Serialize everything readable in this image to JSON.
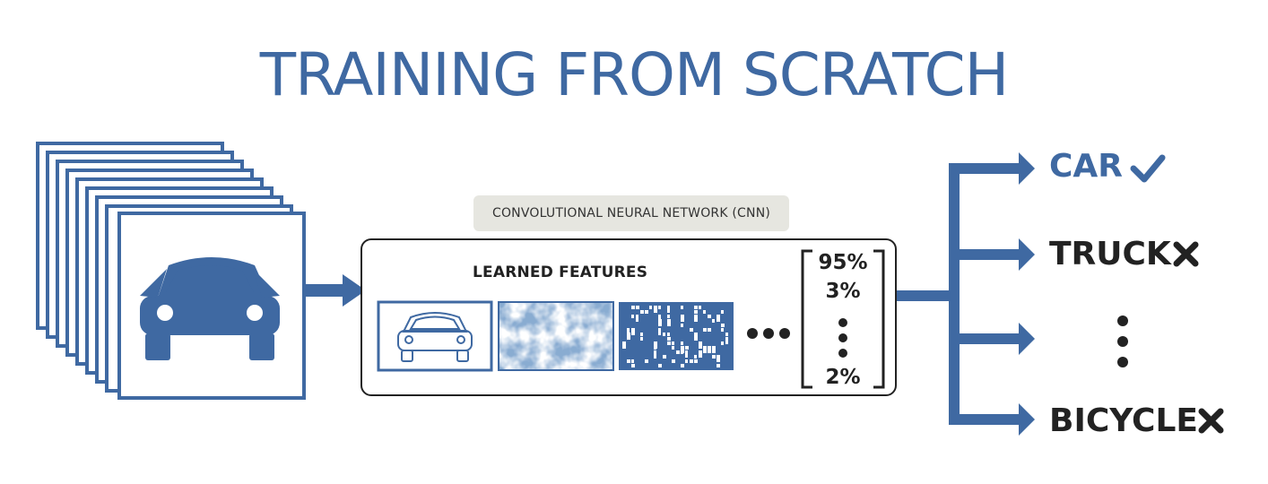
{
  "title": "TRAINING FROM SCRATCH",
  "cnn_label": "CONVOLUTIONAL NEURAL NETWORK (CNN)",
  "features_label": "LEARNED FEATURES",
  "probabilities": [
    "95%",
    "3%",
    "2%"
  ],
  "outputs": [
    {
      "label": "CAR",
      "mark": "check-icon"
    },
    {
      "label": "TRUCK",
      "mark": "x-icon"
    },
    {
      "label": "BICYCLE",
      "mark": "x-icon"
    }
  ],
  "colors": {
    "accent": "#3f69a2",
    "ink": "#222222",
    "pill": "#e6e6e0"
  }
}
